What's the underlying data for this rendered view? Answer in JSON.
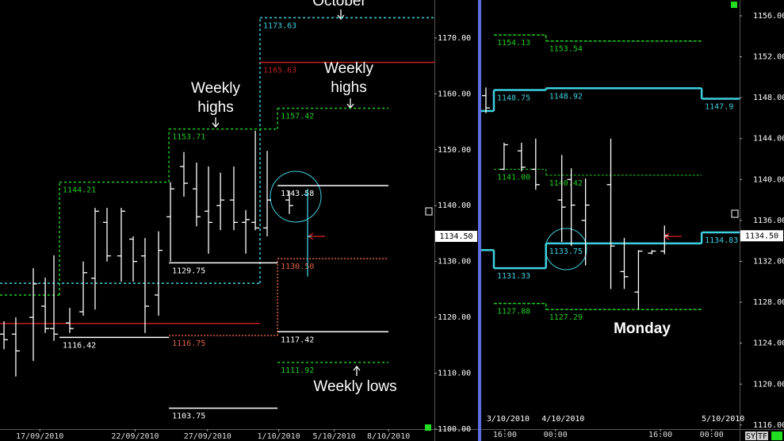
{
  "chart_data": [
    {
      "type": "ohlc",
      "ylim": [
        1100,
        1176.8
      ],
      "yticks": [
        {
          "value": 1100,
          "label": "1100.00"
        },
        {
          "value": 1110,
          "label": "1110.00"
        },
        {
          "value": 1120,
          "label": "1120.00"
        },
        {
          "value": 1130,
          "label": "1130.00"
        },
        {
          "value": 1140,
          "label": "1140.00"
        },
        {
          "value": 1150,
          "label": "1150.00"
        },
        {
          "value": 1160,
          "label": "1160.00"
        },
        {
          "value": 1170,
          "label": "1170.00"
        }
      ],
      "xlim": [
        0,
        36
      ],
      "xticks": [
        {
          "value": 3.3,
          "label": "17/09/2010"
        },
        {
          "value": 11.2,
          "label": "22/09/2010"
        },
        {
          "value": 17.2,
          "label": "27/09/2010"
        },
        {
          "value": 23.1,
          "label": "1/10/2010"
        },
        {
          "value": 27.7,
          "label": "5/10/2010"
        },
        {
          "value": 32.2,
          "label": "8/10/2010"
        }
      ],
      "last_price": {
        "value": 1134.5,
        "label": "1134.50"
      },
      "bars": [
        {
          "x": 0.33,
          "open": 1117,
          "high": 1119.3,
          "low": 1114.3,
          "close": 1116
        },
        {
          "x": 1.31,
          "open": 1117,
          "high": 1120,
          "low": 1109.4,
          "close": 1114
        },
        {
          "x": 2.76,
          "open": 1120,
          "high": 1128.8,
          "low": 1112.2,
          "close": 1126
        },
        {
          "x": 3.75,
          "open": 1122,
          "high": 1127.1,
          "low": 1117.2,
          "close": 1118
        },
        {
          "x": 4.47,
          "open": 1118,
          "high": 1131.1,
          "low": 1115.8,
          "close": 1117
        },
        {
          "x": 5.78,
          "open": 1119,
          "high": 1121.7,
          "low": 1117.2,
          "close": 1118
        },
        {
          "x": 6.9,
          "open": 1121,
          "high": 1130,
          "low": 1120.3,
          "close": 1128
        },
        {
          "x": 7.88,
          "open": 1127,
          "high": 1139.6,
          "low": 1121.4,
          "close": 1139
        },
        {
          "x": 8.87,
          "open": 1137,
          "high": 1139.6,
          "low": 1130,
          "close": 1131
        },
        {
          "x": 10.05,
          "open": 1131,
          "high": 1139.6,
          "low": 1126.4,
          "close": 1139
        },
        {
          "x": 11.04,
          "open": 1134,
          "high": 1134.5,
          "low": 1126.4,
          "close": 1130
        },
        {
          "x": 12.02,
          "open": 1131,
          "high": 1134.2,
          "low": 1117.2,
          "close": 1122
        },
        {
          "x": 13.14,
          "open": 1124,
          "high": 1135.4,
          "low": 1120.3,
          "close": 1132
        },
        {
          "x": 14.13,
          "open": 1138,
          "high": 1144.2,
          "low": 1130,
          "close": 1143
        },
        {
          "x": 15.24,
          "open": 1147,
          "high": 1149.6,
          "low": 1141.6,
          "close": 1144
        },
        {
          "x": 16.29,
          "open": 1143,
          "high": 1147.7,
          "low": 1136.3,
          "close": 1138
        },
        {
          "x": 17.28,
          "open": 1139,
          "high": 1147,
          "low": 1131.4,
          "close": 1137
        },
        {
          "x": 18.27,
          "open": 1140,
          "high": 1145.9,
          "low": 1135.6,
          "close": 1141
        },
        {
          "x": 19.38,
          "open": 1141,
          "high": 1147,
          "low": 1135.6,
          "close": 1137
        },
        {
          "x": 20.37,
          "open": 1137,
          "high": 1139.2,
          "low": 1131.4,
          "close": 1137.5
        },
        {
          "x": 21.16,
          "open": 1137,
          "high": 1153.4,
          "low": 1135.6,
          "close": 1136
        },
        {
          "x": 22.14,
          "open": 1136,
          "high": 1149.8,
          "low": 1134.5,
          "close": 1141
        },
        {
          "x": 23.98,
          "open": 1141,
          "high": 1142.7,
          "low": 1138.5,
          "close": 1140
        },
        {
          "x": 25.49,
          "open": 1142,
          "high": 1143,
          "low": 1127.3,
          "close": 1134.5,
          "color": "#3fd0e0"
        }
      ],
      "level_groups": [
        {
          "color": "#3fd0e0",
          "dash": "3 3",
          "connect": true,
          "levels": [
            {
              "value": 1126.1,
              "from": 0,
              "to": 21.55
            },
            {
              "value": 1173.63,
              "label": "1173.63",
              "from": 21.55,
              "to": 36
            }
          ]
        },
        {
          "color": "#22cc22",
          "dash": "3 3",
          "connect": true,
          "levels": [
            {
              "value": 1124,
              "from": 0,
              "to": 4.93
            },
            {
              "value": 1144.21,
              "label": "1144.21",
              "from": 4.93,
              "to": 14
            },
            {
              "value": 1153.71,
              "label": "1153.71",
              "from": 14,
              "to": 23
            },
            {
              "value": 1157.42,
              "label": "1157.42",
              "from": 23,
              "to": 32.19
            }
          ]
        },
        {
          "color": "#c02020",
          "dash": "none",
          "connect": false,
          "levels": [
            {
              "value": 1118.9,
              "from": 0,
              "to": 21.55
            },
            {
              "value": 1165.63,
              "label": "1165.63",
              "from": 21.55,
              "to": 36
            }
          ]
        },
        {
          "color": "#e06040",
          "dash": "2 2",
          "connect": true,
          "levels": [
            {
              "value": 1116.75,
              "label": "1116.75",
              "from": 14,
              "to": 23
            },
            {
              "value": 1130.5,
              "label": "1130.50",
              "from": 23,
              "to": 32.19
            }
          ]
        },
        {
          "color": "#ffffff",
          "dash": "none",
          "connect": false,
          "levels": [
            {
              "value": 1116.42,
              "label": "1116.42",
              "from": 4.93,
              "to": 14
            },
            {
              "value": 1129.75,
              "label": "1129.75",
              "from": 14,
              "to": 23
            },
            {
              "value": 1143.58,
              "label": "1143.58",
              "from": 23,
              "to": 32.19
            },
            {
              "value": 1117.42,
              "label": "1117.42",
              "from": 23,
              "to": 32.19
            },
            {
              "value": 1103.75,
              "label": "1103.75",
              "from": 14,
              "to": 23
            }
          ]
        },
        {
          "color": "#22cc22",
          "dash": "3 3",
          "connect": false,
          "levels": [
            {
              "value": 1111.92,
              "label": "1111.92",
              "from": 23,
              "to": 32.19
            }
          ]
        }
      ],
      "annotations": [
        {
          "lines": [
            "October"
          ]
        },
        {
          "lines": [
            "Weekly",
            "highs"
          ]
        },
        {
          "lines": [
            "Weekly",
            "highs"
          ]
        },
        {
          "lines": [
            "Weekly lows"
          ]
        }
      ],
      "toolbar": []
    },
    {
      "type": "ohlc",
      "ylim": [
        1115.6,
        1157.55
      ],
      "yticks": [
        {
          "value": 1116,
          "label": "1116.00"
        },
        {
          "value": 1120,
          "label": "1120.00"
        },
        {
          "value": 1124,
          "label": "1124.00"
        },
        {
          "value": 1128,
          "label": "1128.00"
        },
        {
          "value": 1132,
          "label": "1132.00"
        },
        {
          "value": 1136,
          "label": "1136.00"
        },
        {
          "value": 1140,
          "label": "1140.00"
        },
        {
          "value": 1144,
          "label": "1144.00"
        },
        {
          "value": 1148,
          "label": "1148.00"
        },
        {
          "value": 1152,
          "label": "1152.00"
        },
        {
          "value": 1156,
          "label": "1156.00"
        }
      ],
      "xlim": [
        0,
        40.37
      ],
      "xticks": [
        {
          "value": 3.7,
          "label": "16:00"
        },
        {
          "value": 11.6,
          "label": "00:00"
        },
        {
          "value": 28,
          "label": "16:00"
        },
        {
          "value": 36,
          "label": "00:00"
        }
      ],
      "date_labels": [
        {
          "value": 4.2,
          "label": "3/10/2010"
        },
        {
          "value": 12.8,
          "label": "4/10/2010"
        },
        {
          "value": 37.8,
          "label": "5/10/2010"
        }
      ],
      "last_price": {
        "value": 1134.5,
        "label": "1134.50"
      },
      "bars": [
        {
          "x": 0.74,
          "open": 1148.2,
          "high": 1149,
          "low": 1146.5,
          "close": 1147
        },
        {
          "x": 3.58,
          "open": 1141,
          "high": 1143.6,
          "low": 1140.9,
          "close": 1143.4
        },
        {
          "x": 6.3,
          "open": 1142.8,
          "high": 1143.6,
          "low": 1140.8,
          "close": 1141.2
        },
        {
          "x": 8.52,
          "open": 1141,
          "high": 1144,
          "low": 1139,
          "close": 1139.5
        },
        {
          "x": 12.59,
          "open": 1138,
          "high": 1142.4,
          "low": 1133.9,
          "close": 1137.3
        },
        {
          "x": 14.07,
          "open": 1140,
          "high": 1141.1,
          "low": 1133.5,
          "close": 1137.5
        },
        {
          "x": 16.3,
          "open": 1136,
          "high": 1140.1,
          "low": 1131.6,
          "close": 1137.5
        },
        {
          "x": 20.25,
          "open": 1139.5,
          "high": 1144,
          "low": 1129.3,
          "close": 1133.5
        },
        {
          "x": 22.35,
          "open": 1131,
          "high": 1134.3,
          "low": 1129.3,
          "close": 1130.5
        },
        {
          "x": 24.57,
          "open": 1129,
          "high": 1133.1,
          "low": 1127.3,
          "close": 1133
        },
        {
          "x": 26.67,
          "open": 1132.8,
          "high": 1133.1,
          "low": 1132.7,
          "close": 1133
        },
        {
          "x": 28.64,
          "open": 1133,
          "high": 1135.5,
          "low": 1132.7,
          "close": 1134.5
        }
      ],
      "level_groups": [
        {
          "color": "#22cc22",
          "dash": "4 2",
          "width": 1.5,
          "connect": true,
          "levels": [
            {
              "value": 1154.13,
              "label": "1154.13",
              "from": 1.98,
              "to": 10.12
            },
            {
              "value": 1153.54,
              "label": "1153.54",
              "from": 10.12,
              "to": 34.44
            }
          ]
        },
        {
          "color": "#3fd0e0",
          "dash": "none",
          "width": 2.5,
          "connect": true,
          "levels": [
            {
              "value": 1146.7,
              "from": 0,
              "to": 1.98
            },
            {
              "value": 1148.75,
              "label": "1148.75",
              "from": 1.98,
              "to": 10.12
            },
            {
              "value": 1148.92,
              "label": "1148.92",
              "from": 10.12,
              "to": 34.44
            },
            {
              "value": 1147.9,
              "label": "1147.9",
              "from": 34.44,
              "to": 40.37
            }
          ]
        },
        {
          "color": "#22cc22",
          "dash": "3 2",
          "width": 1,
          "connect": true,
          "levels": [
            {
              "value": 1141,
              "label": "1141.00",
              "from": 1.98,
              "to": 10.12
            },
            {
              "value": 1140.42,
              "label": "1140.42",
              "from": 10.12,
              "to": 34.44
            }
          ]
        },
        {
          "color": "#3fd0e0",
          "dash": "none",
          "width": 2.5,
          "connect": true,
          "levels": [
            {
              "value": 1133.1,
              "from": 0,
              "to": 1.98
            },
            {
              "value": 1131.33,
              "label": "1131.33",
              "from": 1.98,
              "to": 10.12
            },
            {
              "value": 1133.75,
              "label": "1133.75",
              "from": 10.12,
              "to": 34.44
            },
            {
              "value": 1134.83,
              "label": "1134.83",
              "from": 34.44,
              "to": 40.37
            }
          ]
        },
        {
          "color": "#22cc22",
          "dash": "4 2",
          "width": 1.5,
          "connect": true,
          "levels": [
            {
              "value": 1127.88,
              "label": "1127.88",
              "from": 1.98,
              "to": 10.12
            },
            {
              "value": 1127.29,
              "label": "1127.29",
              "from": 10.12,
              "to": 34.44
            }
          ]
        }
      ],
      "annotations": [
        {
          "lines": [
            "Monday"
          ]
        }
      ],
      "toolbar": [
        "SY",
        "TF"
      ]
    }
  ]
}
